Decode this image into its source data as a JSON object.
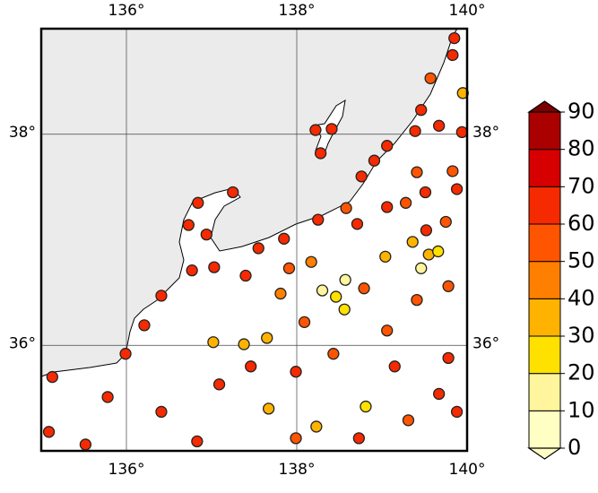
{
  "chart_data": {
    "type": "map",
    "xlim": [
      135,
      140
    ],
    "ylim": [
      35,
      39
    ],
    "xticks": [
      {
        "value": 136,
        "label": "136°"
      },
      {
        "value": 138,
        "label": "138°"
      },
      {
        "value": 140,
        "label": "140°"
      }
    ],
    "yticks": [
      {
        "value": 36,
        "label": "36°"
      },
      {
        "value": 38,
        "label": "38°"
      }
    ],
    "grid": true,
    "x": [
      139.85,
      139.83,
      139.57,
      139.95,
      139.46,
      139.39,
      139.67,
      139.94,
      138.22,
      138.41,
      138.28,
      139.06,
      138.91,
      139.41,
      139.83,
      138.76,
      139.51,
      139.88,
      137.25,
      136.84,
      139.28,
      139.06,
      138.58,
      138.25,
      138.71,
      139.36,
      139.52,
      139.75,
      137.85,
      137.55,
      136.73,
      136.94,
      139.55,
      139.66,
      139.46,
      139.04,
      138.17,
      137.91,
      138.3,
      138.46,
      138.57,
      138.56,
      137.81,
      138.79,
      137.03,
      136.77,
      137.4,
      137.02,
      137.38,
      137.65,
      137.67,
      138.23,
      138.81,
      138.43,
      135.99,
      136.21,
      135.13,
      135.78,
      136.41,
      137.09,
      137.46,
      137.99,
      139.15,
      139.78,
      139.67,
      139.31,
      139.88,
      138.73,
      137.99,
      136.83,
      135.52,
      135.09,
      139.41,
      139.78,
      139.06,
      136.41,
      138.09
    ],
    "y": [
      38.91,
      38.75,
      38.53,
      38.39,
      38.23,
      38.03,
      38.08,
      38.02,
      38.04,
      38.05,
      37.82,
      37.89,
      37.75,
      37.64,
      37.65,
      37.6,
      37.45,
      37.48,
      37.45,
      37.35,
      37.35,
      37.31,
      37.3,
      37.19,
      37.15,
      36.98,
      37.09,
      37.17,
      37.01,
      36.92,
      37.14,
      37.05,
      36.86,
      36.89,
      36.73,
      36.84,
      36.79,
      36.73,
      36.52,
      36.46,
      36.62,
      36.34,
      36.49,
      36.54,
      36.74,
      36.71,
      36.66,
      36.03,
      36.01,
      36.07,
      35.4,
      35.23,
      35.42,
      35.92,
      35.92,
      36.19,
      35.7,
      35.51,
      35.37,
      35.63,
      35.8,
      35.75,
      35.8,
      35.88,
      35.54,
      35.29,
      35.37,
      35.12,
      35.12,
      35.09,
      35.06,
      35.18,
      36.43,
      36.56,
      36.14,
      36.47,
      36.22
    ],
    "values": [
      65,
      60,
      55,
      35,
      60,
      60,
      62,
      60,
      60,
      60,
      60,
      60,
      62,
      50,
      55,
      60,
      60,
      60,
      60,
      62,
      55,
      60,
      55,
      60,
      60,
      30,
      60,
      55,
      62,
      60,
      60,
      60,
      30,
      25,
      15,
      30,
      40,
      55,
      15,
      20,
      15,
      25,
      40,
      50,
      60,
      60,
      60,
      30,
      30,
      30,
      30,
      30,
      20,
      55,
      60,
      60,
      60,
      60,
      60,
      60,
      62,
      60,
      60,
      62,
      60,
      55,
      62,
      60,
      55,
      62,
      60,
      60,
      55,
      55,
      55,
      60,
      58
    ],
    "colorbar": {
      "lim": [
        0,
        90
      ],
      "ticks": [
        0,
        10,
        20,
        30,
        40,
        50,
        60,
        70,
        80,
        90
      ],
      "colors": [
        "#ffffc4",
        "#fff59c",
        "#ffe100",
        "#ffb300",
        "#ff7f00",
        "#ff5500",
        "#f52a00",
        "#d70000",
        "#aa0000"
      ],
      "under_color": "#ffffc4",
      "over_color": "#7d0000"
    }
  }
}
